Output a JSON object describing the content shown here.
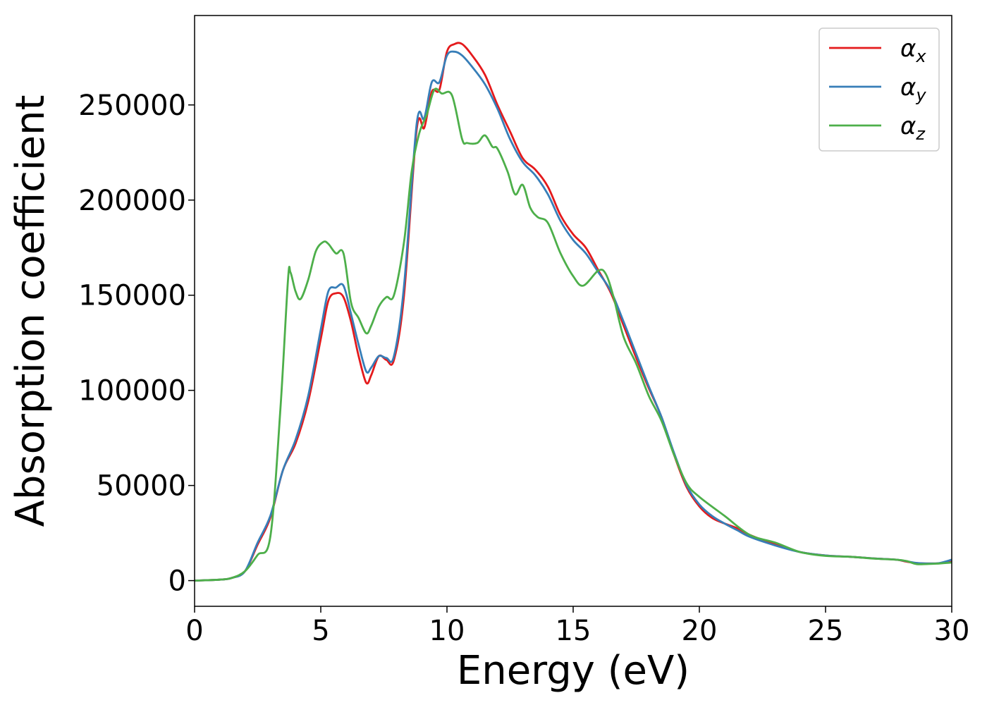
{
  "chart_data": {
    "type": "line",
    "xlabel": "Energy (eV)",
    "ylabel": "Absorption coefficient",
    "xlim": [
      0,
      30
    ],
    "ylim": [
      -13500,
      297000
    ],
    "xticks": [
      0,
      5,
      10,
      15,
      20,
      25,
      30
    ],
    "yticks": [
      0,
      50000,
      100000,
      150000,
      200000,
      250000
    ],
    "grid": false,
    "legend_position": "top-right",
    "series": [
      {
        "name": "α_x",
        "label_main": "α",
        "label_sub": "x",
        "color": "#e41a1c",
        "x": [
          0,
          1,
          1.5,
          2,
          2.5,
          3,
          3.5,
          4,
          4.5,
          5,
          5.3,
          5.6,
          5.9,
          6.2,
          6.5,
          6.8,
          7,
          7.3,
          7.6,
          7.9,
          8.3,
          8.8,
          9.1,
          9.4,
          9.7,
          10,
          10.3,
          10.6,
          11,
          11.5,
          12,
          12.5,
          13,
          13.5,
          14,
          14.5,
          15,
          15.5,
          16,
          16.5,
          17,
          17.5,
          18,
          18.5,
          19,
          19.5,
          20,
          20.5,
          21,
          21.5,
          22,
          23,
          24,
          25,
          26,
          27,
          27.8,
          28.2,
          28.6,
          29,
          29.5,
          30
        ],
        "y": [
          0,
          500,
          1500,
          5000,
          19000,
          33000,
          58000,
          72000,
          94000,
          127000,
          147000,
          151000,
          149000,
          136000,
          118000,
          104000,
          108000,
          118000,
          116000,
          116000,
          150000,
          237000,
          238000,
          257000,
          258000,
          278000,
          282000,
          282000,
          276000,
          266000,
          250000,
          236000,
          222000,
          216000,
          207000,
          192000,
          182000,
          175000,
          163000,
          151000,
          134000,
          117000,
          101000,
          86000,
          66000,
          49000,
          39000,
          33000,
          30000,
          27500,
          24000,
          19000,
          15000,
          13200,
          12500,
          11600,
          11000,
          10000,
          9200,
          9000,
          9100,
          10000
        ]
      },
      {
        "name": "α_y",
        "label_main": "α",
        "label_sub": "y",
        "color": "#377eb8",
        "x": [
          0,
          1,
          1.5,
          2,
          2.5,
          3,
          3.5,
          4,
          4.5,
          5,
          5.3,
          5.6,
          5.9,
          6.2,
          6.5,
          6.8,
          7,
          7.3,
          7.6,
          7.9,
          8.3,
          8.8,
          9.1,
          9.4,
          9.7,
          10,
          10.3,
          10.6,
          11,
          11.5,
          12,
          12.5,
          13,
          13.5,
          14,
          14.5,
          15,
          15.5,
          16,
          16.5,
          17,
          17.5,
          18,
          18.5,
          19,
          19.5,
          20,
          20.5,
          21,
          21.5,
          22,
          23,
          24,
          25,
          26,
          27,
          27.8,
          28.2,
          28.6,
          29,
          29.5,
          30
        ],
        "y": [
          0,
          500,
          1500,
          5000,
          20000,
          34000,
          58000,
          74000,
          97000,
          132000,
          152000,
          154000,
          155000,
          140000,
          124000,
          110000,
          112000,
          118000,
          117000,
          118000,
          155000,
          240000,
          243000,
          262000,
          262000,
          276000,
          278000,
          276000,
          270000,
          261000,
          248000,
          232000,
          220000,
          213000,
          203000,
          189000,
          179000,
          172000,
          162000,
          152000,
          136000,
          119000,
          102000,
          86000,
          67000,
          50000,
          40000,
          34000,
          30000,
          26500,
          23000,
          18500,
          15000,
          13200,
          12500,
          11600,
          11000,
          10200,
          9300,
          9000,
          9200,
          11000
        ]
      },
      {
        "name": "α_z",
        "label_main": "α",
        "label_sub": "z",
        "color": "#4daf4a",
        "x": [
          0,
          1,
          1.5,
          2,
          2.5,
          3,
          3.4,
          3.7,
          3.8,
          4,
          4.2,
          4.5,
          4.8,
          5.1,
          5.3,
          5.6,
          5.9,
          6.2,
          6.5,
          6.8,
          7,
          7.3,
          7.6,
          7.9,
          8.3,
          8.6,
          8.9,
          9.2,
          9.5,
          9.8,
          10.2,
          10.6,
          10.8,
          11.2,
          11.5,
          11.8,
          12,
          12.4,
          12.7,
          13,
          13.3,
          13.6,
          14,
          14.5,
          15,
          15.4,
          16,
          16.3,
          16.6,
          17,
          17.5,
          18,
          18.5,
          19,
          19.5,
          20,
          21,
          22,
          23,
          24,
          25,
          26,
          27,
          27.8,
          28.2,
          28.6,
          29,
          29.5,
          30
        ],
        "y": [
          0,
          500,
          1500,
          5000,
          13500,
          23000,
          90000,
          158000,
          162000,
          152000,
          148000,
          158000,
          173000,
          178000,
          177000,
          172000,
          172000,
          146000,
          138000,
          130000,
          134000,
          144000,
          149000,
          150000,
          178000,
          215000,
          235000,
          245000,
          258000,
          256000,
          255000,
          232000,
          230000,
          230000,
          234000,
          228000,
          227000,
          215000,
          203000,
          208000,
          196000,
          191000,
          188000,
          172000,
          160000,
          155000,
          163000,
          161000,
          149000,
          128000,
          114000,
          97000,
          84000,
          66000,
          51000,
          44000,
          34000,
          24000,
          20000,
          15000,
          13000,
          12500,
          11500,
          11000,
          10300,
          8700,
          8700,
          9000,
          9500
        ]
      }
    ]
  }
}
